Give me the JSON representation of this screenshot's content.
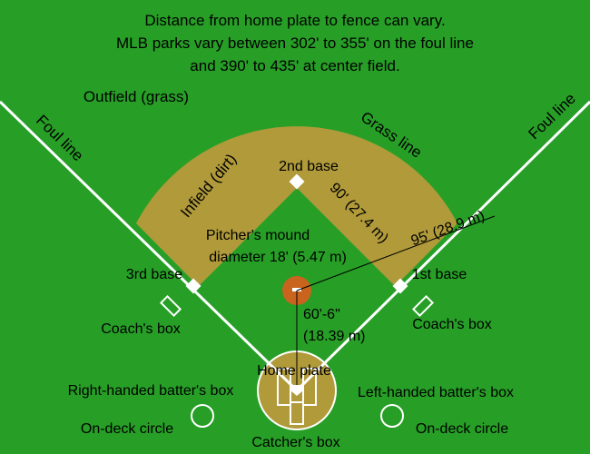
{
  "header": {
    "line1": "Distance from home plate to fence can vary.",
    "line2": "MLB parks vary between 302' to 355' on the foul line",
    "line3": "and 390' to 435' at center field."
  },
  "labels": {
    "outfield": "Outfield (grass)",
    "foul_line_left": "Foul line",
    "foul_line_right": "Foul line",
    "grass_line": "Grass line",
    "infield": "Infield (dirt)",
    "second_base": "2nd base",
    "third_base": "3rd base",
    "first_base": "1st base",
    "base_distance": "90' (27.4 m)",
    "diagonal_distance": "95' (28.9 m)",
    "pitchers_mound_line1": "Pitcher's mound",
    "pitchers_mound_line2": "diameter 18' (5.47 m)",
    "mound_distance_line1": "60'-6\"",
    "mound_distance_line2": "(18.39 m)",
    "coach_box_left": "Coach's box",
    "coach_box_right": "Coach's box",
    "home_plate": "Home plate",
    "rh_batter_box": "Right-handed batter's box",
    "lh_batter_box": "Left-handed batter's box",
    "on_deck_left": "On-deck circle",
    "on_deck_right": "On-deck circle",
    "catchers_box": "Catcher's box"
  },
  "colors": {
    "grass": "#279f27",
    "dirt": "#b09a3a",
    "mound": "#c8641e",
    "lines": "#ffffff"
  }
}
